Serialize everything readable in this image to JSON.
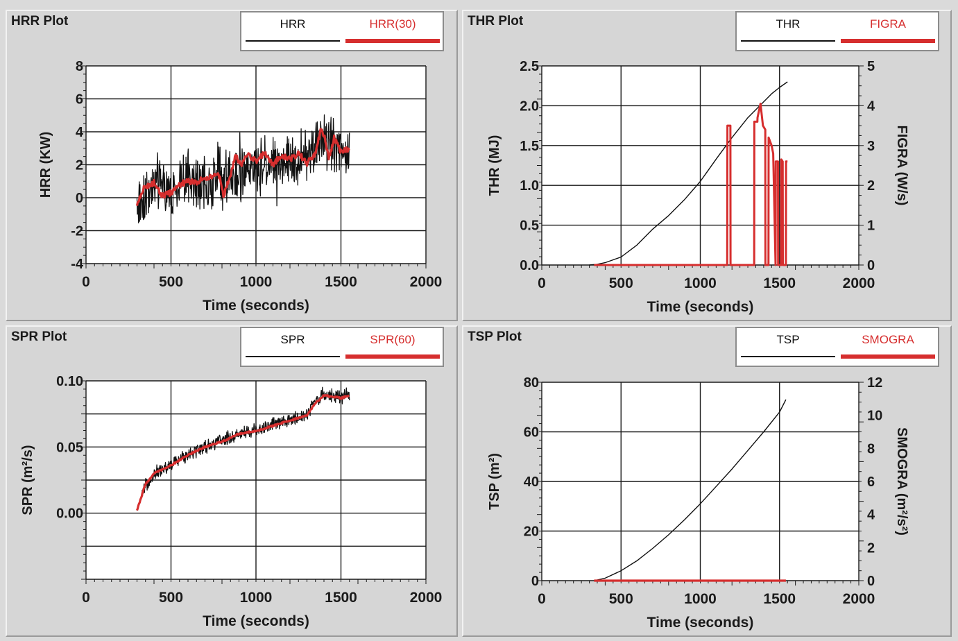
{
  "colors": {
    "black_series": "#111111",
    "red_series": "#d62e2e",
    "plot_bg": "#ffffff",
    "panel_bg": "#d6d6d6"
  },
  "chart_data": [
    {
      "id": "hrr",
      "type": "line",
      "title": "HRR Plot",
      "xlabel": "Time (seconds)",
      "ylabel": "HRR (KW)",
      "xlim": [
        0,
        2000
      ],
      "ylim": [
        -4,
        8
      ],
      "xticks": [
        0,
        500,
        1000,
        1500,
        2000
      ],
      "yticks": [
        -4,
        -2,
        0,
        2,
        4,
        6,
        8
      ],
      "grid": true,
      "legend_position": "top-right",
      "series": [
        {
          "name": "HRR",
          "color": "#111111",
          "style": "noisy",
          "x": [
            300,
            400,
            500,
            600,
            700,
            800,
            900,
            1000,
            1100,
            1200,
            1300,
            1400,
            1500,
            1550
          ],
          "values": [
            -0.5,
            1.0,
            0.3,
            1.0,
            0.8,
            1.5,
            1.2,
            2.0,
            2.2,
            2.4,
            2.6,
            3.5,
            3.2,
            3.0
          ]
        },
        {
          "name": "HRR(30)",
          "color": "#d62e2e",
          "style": "smooth",
          "x": [
            300,
            340,
            400,
            450,
            500,
            550,
            600,
            650,
            700,
            750,
            780,
            810,
            850,
            880,
            920,
            950,
            1000,
            1050,
            1100,
            1150,
            1200,
            1250,
            1300,
            1350,
            1380,
            1400,
            1430,
            1460,
            1500,
            1550
          ],
          "values": [
            -0.5,
            0.6,
            0.9,
            0.1,
            0.3,
            0.8,
            1.0,
            0.9,
            1.2,
            1.3,
            1.5,
            0.1,
            1.4,
            2.5,
            2.0,
            2.7,
            2.2,
            2.7,
            2.0,
            2.6,
            2.3,
            2.7,
            2.1,
            2.7,
            4.1,
            3.8,
            2.4,
            3.6,
            2.8,
            3.0
          ]
        }
      ]
    },
    {
      "id": "thr",
      "type": "line",
      "title": "THR Plot",
      "xlabel": "Time (seconds)",
      "ylabel": "THR (MJ)",
      "y2label": "FIGRA (W/s)",
      "xlim": [
        0,
        2000
      ],
      "ylim": [
        0,
        2.5
      ],
      "y2lim": [
        0,
        5
      ],
      "xticks": [
        0,
        500,
        1000,
        1500,
        2000
      ],
      "yticks": [
        0.0,
        0.5,
        1.0,
        1.5,
        2.0,
        2.5
      ],
      "ytick_labels": [
        "0.0",
        "0.5",
        "1.0",
        "1.5",
        "2.0",
        "2.5"
      ],
      "y2ticks": [
        0,
        1,
        2,
        3,
        4,
        5
      ],
      "grid": true,
      "legend_position": "top-right",
      "series": [
        {
          "name": "THR",
          "color": "#111111",
          "style": "line",
          "axis": "left",
          "x": [
            300,
            350,
            400,
            500,
            600,
            700,
            800,
            900,
            1000,
            1100,
            1200,
            1300,
            1400,
            1450,
            1500,
            1550
          ],
          "values": [
            0.0,
            0.01,
            0.03,
            0.1,
            0.25,
            0.45,
            0.62,
            0.82,
            1.05,
            1.33,
            1.6,
            1.85,
            2.05,
            2.15,
            2.23,
            2.3
          ]
        },
        {
          "name": "FIGRA",
          "color": "#d62e2e",
          "style": "spikes",
          "axis": "right",
          "x": [
            330,
            1170,
            1171,
            1190,
            1191,
            1340,
            1341,
            1360,
            1361,
            1380,
            1395,
            1410,
            1411,
            1430,
            1431,
            1450,
            1460,
            1475,
            1476,
            1490,
            1491,
            1510,
            1511,
            1520,
            1521,
            1540,
            1541,
            1550
          ],
          "values": [
            0,
            0,
            3.5,
            3.5,
            0,
            0,
            3.6,
            3.6,
            3.7,
            4.05,
            3.5,
            3.4,
            0,
            0,
            3.2,
            3.0,
            2.8,
            0,
            2.6,
            2.6,
            0,
            0,
            2.65,
            2.6,
            0,
            0,
            2.6,
            2.6
          ]
        }
      ]
    },
    {
      "id": "spr",
      "type": "line",
      "title": "SPR Plot",
      "xlabel": "Time (seconds)",
      "ylabel": "SPR (m²/s)",
      "xlim": [
        0,
        2000
      ],
      "ylim": [
        -0.05,
        0.1
      ],
      "xticks": [
        0,
        500,
        1000,
        1500,
        2000
      ],
      "yticks": [
        0.0,
        0.05,
        0.1
      ],
      "ytick_labels": [
        "0.00",
        "0.05",
        "0.10"
      ],
      "grid": true,
      "legend_position": "top-right",
      "series": [
        {
          "name": "SPR",
          "color": "#111111",
          "style": "noisy",
          "x": [
            300,
            350,
            400,
            500,
            600,
            700,
            800,
            900,
            1000,
            1100,
            1200,
            1300,
            1350,
            1400,
            1500,
            1550
          ],
          "values": [
            0.002,
            0.02,
            0.03,
            0.036,
            0.045,
            0.05,
            0.055,
            0.06,
            0.063,
            0.067,
            0.07,
            0.075,
            0.085,
            0.09,
            0.088,
            0.089
          ]
        },
        {
          "name": "SPR(60)",
          "color": "#d62e2e",
          "style": "smooth",
          "x": [
            300,
            320,
            350,
            400,
            500,
            600,
            700,
            800,
            900,
            1000,
            1100,
            1200,
            1300,
            1350,
            1400,
            1450,
            1500,
            1550
          ],
          "values": [
            0.002,
            0.01,
            0.022,
            0.03,
            0.036,
            0.044,
            0.05,
            0.054,
            0.06,
            0.062,
            0.066,
            0.07,
            0.074,
            0.083,
            0.089,
            0.088,
            0.087,
            0.089
          ]
        }
      ]
    },
    {
      "id": "tsp",
      "type": "line",
      "title": "TSP Plot",
      "xlabel": "Time (seconds)",
      "ylabel": "TSP (m²)",
      "y2label": "SMOGRA (m²/s²)",
      "xlim": [
        0,
        2000
      ],
      "ylim": [
        0,
        80
      ],
      "y2lim": [
        0,
        12
      ],
      "xticks": [
        0,
        500,
        1000,
        1500,
        2000
      ],
      "yticks": [
        0,
        20,
        40,
        60,
        80
      ],
      "y2ticks": [
        0,
        2,
        4,
        6,
        8,
        10,
        12
      ],
      "grid": true,
      "legend_position": "top-right",
      "series": [
        {
          "name": "TSP",
          "color": "#111111",
          "style": "line",
          "axis": "left",
          "x": [
            330,
            400,
            500,
            600,
            700,
            800,
            900,
            1000,
            1100,
            1200,
            1300,
            1400,
            1500,
            1540
          ],
          "values": [
            0,
            1,
            4,
            8,
            13,
            18.5,
            24.5,
            31,
            38,
            45,
            52.5,
            60,
            68,
            73
          ]
        },
        {
          "name": "SMOGRA",
          "color": "#d62e2e",
          "style": "line",
          "axis": "right",
          "x": [
            330,
            1540
          ],
          "values": [
            0,
            0
          ]
        }
      ]
    }
  ]
}
